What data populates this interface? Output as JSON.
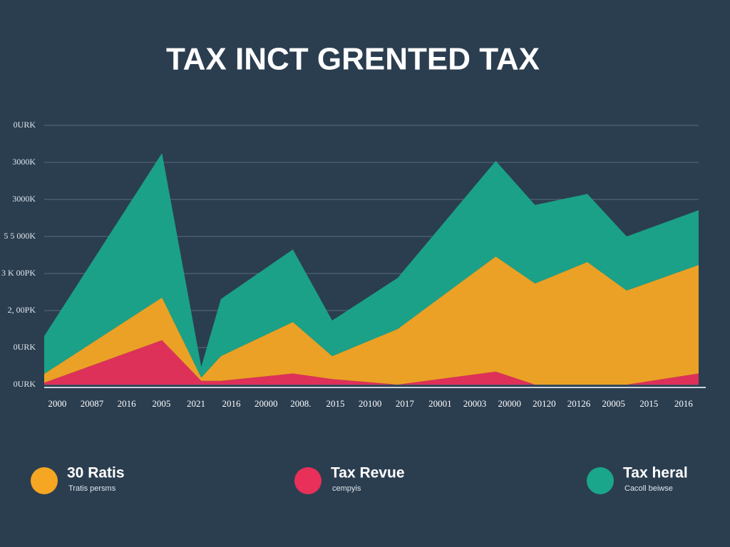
{
  "chart_data": {
    "type": "stacked-area",
    "title": "TAX INCT GRENTED TAX",
    "x": [
      0,
      18,
      24,
      27,
      38,
      44,
      54,
      69,
      75,
      83,
      89,
      100
    ],
    "xlim": [
      0,
      100
    ],
    "xticks": [
      {
        "value": 2,
        "label": "2000"
      },
      {
        "value": 7.3,
        "label": "20087"
      },
      {
        "value": 12.6,
        "label": "2016"
      },
      {
        "value": 17.9,
        "label": "2005"
      },
      {
        "value": 23.2,
        "label": "2021"
      },
      {
        "value": 28.6,
        "label": "2016"
      },
      {
        "value": 33.9,
        "label": "20000"
      },
      {
        "value": 39.2,
        "label": "2008."
      },
      {
        "value": 44.5,
        "label": "2015"
      },
      {
        "value": 49.8,
        "label": "20100"
      },
      {
        "value": 55.1,
        "label": "2017"
      },
      {
        "value": 60.5,
        "label": "20001"
      },
      {
        "value": 65.8,
        "label": "20003"
      },
      {
        "value": 71.1,
        "label": "20000"
      },
      {
        "value": 76.4,
        "label": "20120"
      },
      {
        "value": 81.7,
        "label": "20126"
      },
      {
        "value": 87.0,
        "label": "20005"
      },
      {
        "value": 92.4,
        "label": "2015"
      },
      {
        "value": 97.7,
        "label": "2016"
      }
    ],
    "ylim": [
      0,
      7
    ],
    "yticks": [
      {
        "value": 0,
        "label": "0URK"
      },
      {
        "value": 1,
        "label": "0URK"
      },
      {
        "value": 2,
        "label": "2, 00PK"
      },
      {
        "value": 3,
        "label": "3 K 00PK"
      },
      {
        "value": 4,
        "label": "5 5 000K"
      },
      {
        "value": 5,
        "label": "3000K"
      },
      {
        "value": 6,
        "label": "3000K"
      },
      {
        "value": 7,
        "label": "0URK"
      }
    ],
    "grid": true,
    "series": [
      {
        "name": "Tax Revue",
        "subtitle": "cempyis",
        "color": "#e8305a",
        "values": [
          0.05,
          1.2,
          0.1,
          0.1,
          0.3,
          0.15,
          0,
          0.35,
          0,
          0,
          0,
          0.3
        ]
      },
      {
        "name": "30 Ratis",
        "subtitle": "Tratis persms",
        "color": "#f5a623",
        "values": [
          0.24,
          1.15,
          0.09,
          0.67,
          1.39,
          0.62,
          1.5,
          3.11,
          2.73,
          3.31,
          2.54,
          2.93
        ]
      },
      {
        "name": "Tax heral",
        "subtitle": "Cacoll beiwse",
        "color": "#1aa68a",
        "values": [
          1.02,
          3.9,
          0.29,
          1.54,
          1.96,
          0.96,
          1.38,
          2.58,
          2.12,
          1.84,
          1.46,
          1.48
        ]
      }
    ],
    "legend_order": [
      1,
      0,
      2
    ]
  }
}
